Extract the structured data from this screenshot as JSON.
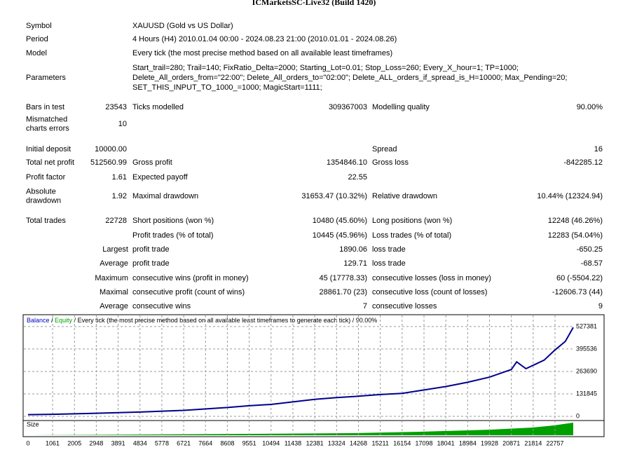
{
  "report": {
    "title": "ICMarketsSC-Live32 (Build 1420)",
    "rows": [
      {
        "label": [
          "Symbol"
        ],
        "label2": [
          "XAUUSD (Gold vs US Dollar)"
        ]
      },
      {
        "label": [
          "Period"
        ],
        "label2": [
          "4 Hours (H4) 2010.01.04 00:00 - 2024.08.23 21:00 (2010.01.01 - 2024.08.26)"
        ]
      },
      {
        "label": [
          "Model"
        ],
        "label2": [
          "Every tick (the most precise method based on all available least timeframes)"
        ]
      },
      {
        "label": [
          "Parameters"
        ],
        "label2": [
          "Start_trail=280; Trail=140; FixRatio_Delta=2000; Starting_Lot=0.01; Stop_Loss=260; Every_X_hour=1; TP=1000;",
          "Delete_All_orders_from=\"22:00\"; Delete_All_orders_to=\"02:00\"; Delete_ALL_orders_if_spread_is_H=10000; Max_Pending=20;",
          "SET_THIS_INPUT_TO_1000_=1000; MagicStart=1111;"
        ]
      },
      {
        "label": [
          "Bars in test"
        ],
        "value": "23543",
        "label2": [
          "Ticks modelled"
        ],
        "value2": "309367003",
        "label3": "Modelling quality",
        "value3": "90.00%"
      },
      {
        "label": [
          "Mismatched",
          "charts errors"
        ],
        "value": "10"
      },
      {
        "label": [
          "Initial deposit"
        ],
        "value": "10000.00",
        "label3": "Spread",
        "value3": "16"
      },
      {
        "label": [
          "Total net profit"
        ],
        "value": "512560.99",
        "label2": [
          "Gross profit"
        ],
        "value2": "1354846.10",
        "label3": "Gross loss",
        "value3": "-842285.12"
      },
      {
        "label": [
          "Profit factor"
        ],
        "value": "1.61",
        "label2": [
          "Expected payoff"
        ],
        "value2": "22.55"
      },
      {
        "label": [
          "Absolute",
          "drawdown"
        ],
        "value": "1.92",
        "label2": [
          "Maximal drawdown"
        ],
        "value2": "31653.47 (10.32%)",
        "label3": "Relative drawdown",
        "value3": "10.44% (12324.94)"
      },
      {
        "label": [
          "Total trades"
        ],
        "value": "22728",
        "label2": [
          "Short positions (won %)"
        ],
        "value2": "10480 (45.60%)",
        "label3": "Long positions (won %)",
        "value3": "12248 (46.26%)"
      },
      {
        "label2": [
          "Profit trades (% of total)"
        ],
        "value2": "10445 (45.96%)",
        "label3": "Loss trades (% of total)",
        "value3": "12283 (54.04%)"
      },
      {
        "prefix": "Largest",
        "label2": [
          "profit trade"
        ],
        "value2": "1890.06",
        "label3": "loss trade",
        "value3": "-650.25"
      },
      {
        "prefix": "Average",
        "label2": [
          "profit trade"
        ],
        "value2": "129.71",
        "label3": "loss trade",
        "value3": "-68.57"
      },
      {
        "prefix": "Maximum",
        "label2": [
          "consecutive wins (profit in money)"
        ],
        "value2": "45 (17778.33)",
        "label3": "consecutive losses (loss in money)",
        "value3": "60 (-5504.22)"
      },
      {
        "prefix": "Maximal",
        "label2": [
          "consecutive profit (count of wins)"
        ],
        "value2": "28861.70 (23)",
        "label3": "consecutive loss (count of losses)",
        "value3": "-12606.73 (44)"
      },
      {
        "prefix": "Average",
        "label2": [
          "consecutive wins"
        ],
        "value2": "7",
        "label3": "consecutive losses",
        "value3": "9"
      }
    ]
  },
  "chart_data": {
    "type": "line",
    "legend": [
      {
        "text": "Balance",
        "color": "#0000c0"
      },
      {
        "text": " / ",
        "color": "#000000"
      },
      {
        "text": "Equity",
        "color": "#00a000"
      },
      {
        "text": " / Every tick (the most precise method based on all available least timeframes to generate each tick) / 90.00%",
        "color": "#000000"
      }
    ],
    "size_label": "Size",
    "x": [
      0,
      1061,
      2948,
      4834,
      6721,
      8608,
      9551,
      10494,
      11438,
      12381,
      13324,
      14268,
      15211,
      16154,
      17098,
      18041,
      18984,
      19928,
      20871,
      21100,
      21500,
      21814,
      22286,
      22757,
      23200,
      23543
    ],
    "series": [
      {
        "name": "Balance",
        "color": "#00008b",
        "values": [
          10000,
          12000,
          18000,
          25000,
          35000,
          52000,
          62000,
          70000,
          85000,
          100000,
          110000,
          118000,
          128000,
          135000,
          155000,
          175000,
          200000,
          230000,
          275000,
          320000,
          280000,
          300000,
          330000,
          390000,
          440000,
          522560
        ]
      }
    ],
    "xlim": [
      0,
      23543
    ],
    "xticks": [
      0,
      1061,
      2005,
      2948,
      3891,
      4834,
      5778,
      6721,
      7664,
      8608,
      9551,
      10494,
      11438,
      12381,
      13324,
      14268,
      15211,
      16154,
      17098,
      18041,
      18984,
      19928,
      20871,
      21814,
      22757
    ],
    "ylim": [
      -24700,
      597000
    ],
    "yticks": [
      0,
      131845,
      263690,
      395536,
      527381
    ],
    "grid": true
  }
}
